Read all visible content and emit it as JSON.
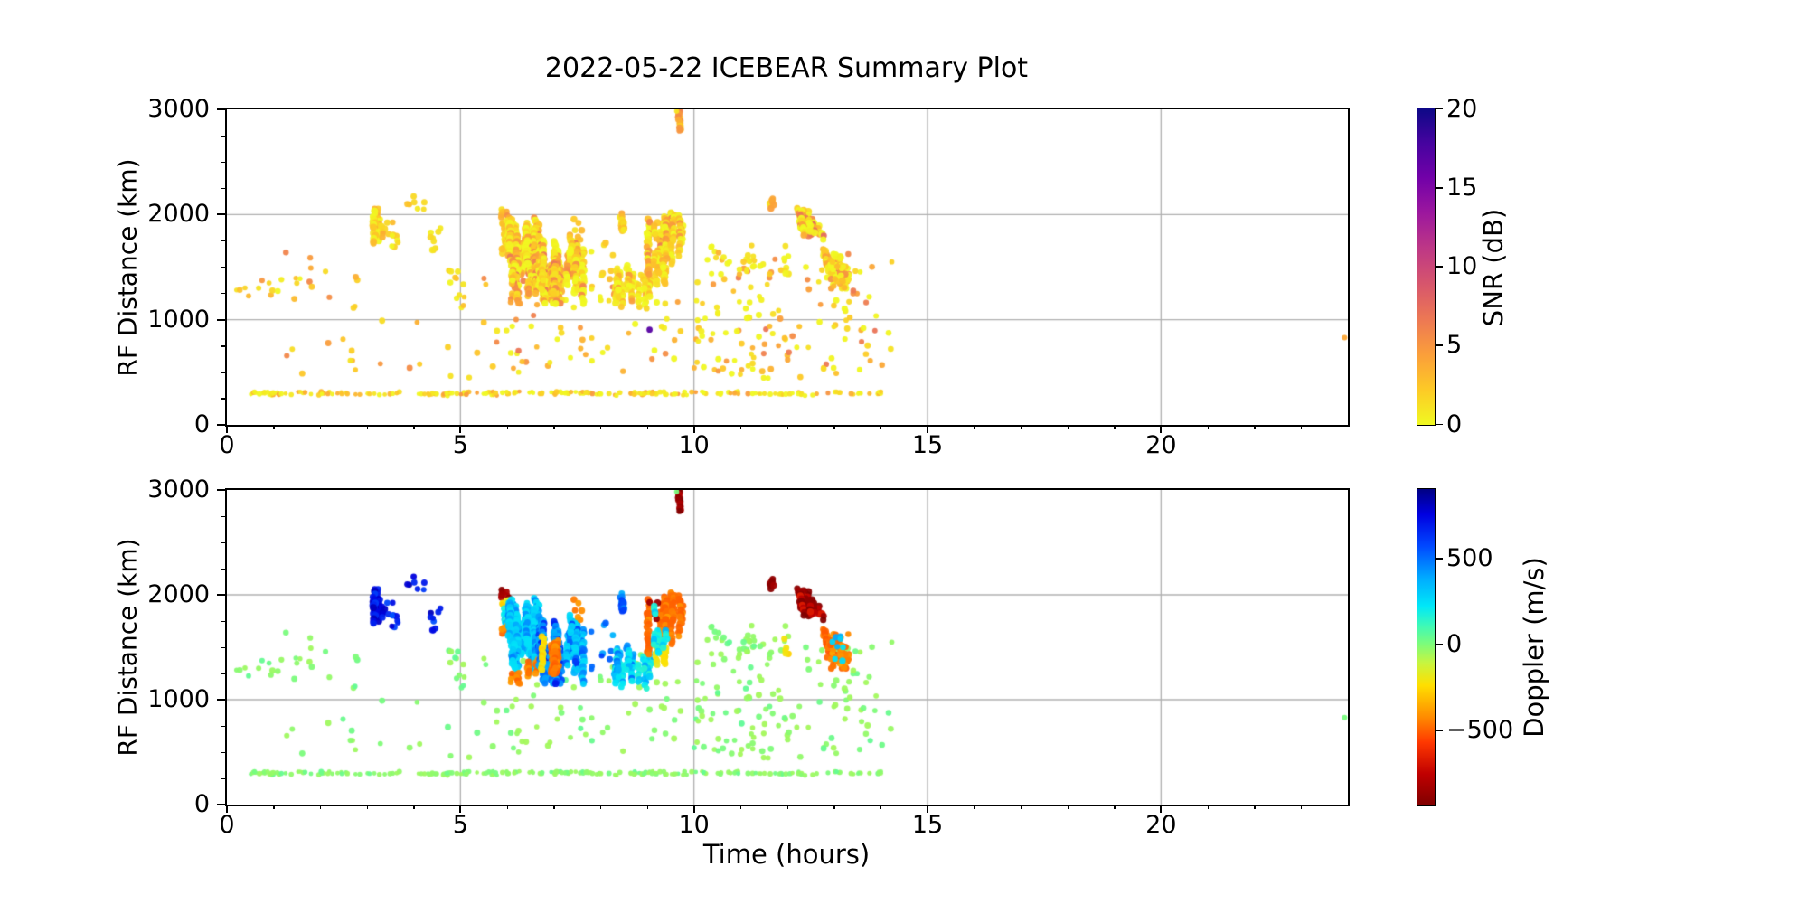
{
  "title": "2022-05-22 ICEBEAR Summary Plot",
  "axes": {
    "x_label": "Time (hours)",
    "y_label": "RF Distance (km)",
    "x_range": [
      0,
      24
    ],
    "y_range": [
      0,
      3000
    ],
    "x_major_ticks": [
      0,
      5,
      10,
      15,
      20
    ],
    "x_minor_step": 1,
    "y_major_ticks": [
      0,
      1000,
      2000,
      3000
    ],
    "y_minor_step": 250,
    "grid_x": [
      5,
      10,
      15,
      20
    ],
    "grid_y": [
      1000,
      2000
    ],
    "grid": true,
    "grid_color": "#b0b0b0",
    "spine_color": "#000000",
    "background": "#ffffff"
  },
  "colorbars": {
    "snr": {
      "label": "SNR (dB)",
      "vmin": 0,
      "vmax": 20,
      "ticks": [
        {
          "v": 0,
          "label": "0"
        },
        {
          "v": 5,
          "label": "5"
        },
        {
          "v": 10,
          "label": "10"
        },
        {
          "v": 15,
          "label": "15"
        },
        {
          "v": 20,
          "label": "20"
        }
      ],
      "stops": [
        [
          0,
          "#f0f921"
        ],
        [
          0.11,
          "#fdca26"
        ],
        [
          0.22,
          "#fb9f3a"
        ],
        [
          0.33,
          "#ed7953"
        ],
        [
          0.44,
          "#d8576b"
        ],
        [
          0.56,
          "#bd3786"
        ],
        [
          0.67,
          "#9c179e"
        ],
        [
          0.78,
          "#7201a8"
        ],
        [
          0.89,
          "#46039f"
        ],
        [
          1,
          "#0d0887"
        ]
      ]
    },
    "doppler": {
      "label": "Doppler (m/s)",
      "vmin": -937,
      "vmax": 905,
      "ticks": [
        {
          "v": 500,
          "label": "500"
        },
        {
          "v": 0,
          "label": "0"
        },
        {
          "v": -500,
          "label": "−500"
        }
      ],
      "stops": [
        [
          0,
          "#7f0000"
        ],
        [
          0.1,
          "#c00000"
        ],
        [
          0.2,
          "#ff3800"
        ],
        [
          0.28,
          "#ff8c00"
        ],
        [
          0.38,
          "#ffdf00"
        ],
        [
          0.45,
          "#c8f53f"
        ],
        [
          0.51,
          "#7dfc7a"
        ],
        [
          0.57,
          "#3cf9b9"
        ],
        [
          0.63,
          "#00e8f8"
        ],
        [
          0.72,
          "#00aaff"
        ],
        [
          0.82,
          "#0048ff"
        ],
        [
          0.92,
          "#0000e0"
        ],
        [
          1,
          "#000083"
        ]
      ]
    }
  },
  "chart_data": {
    "type": "scatter",
    "title": "2022-05-22 ICEBEAR Summary Plot",
    "panels": [
      {
        "id": "snr",
        "color_by": "SNR (dB)",
        "colormap": "plasma_r",
        "x": "Time (hours)",
        "y": "RF Distance (km)"
      },
      {
        "id": "doppler",
        "color_by": "Doppler (m/s)",
        "colormap": "jet_r",
        "x": "Time (hours)",
        "y": "RF Distance (km)"
      }
    ],
    "activity_span_hours": [
      0.2,
      14.3
    ],
    "clusters": [
      {
        "kind": "row",
        "t": [
          0.3,
          14.1
        ],
        "r": [
          283,
          316
        ],
        "n": 150,
        "snr": [
          0,
          5
        ],
        "dop": [
          -45,
          45
        ],
        "bias": 2.2,
        "size": 2.3
      },
      {
        "kind": "scatter",
        "t": [
          0.15,
          3.0
        ],
        "r": [
          1080,
          1660
        ],
        "n": 15,
        "snr": [
          1,
          6
        ],
        "dop": [
          -50,
          50
        ],
        "bias": 1.6,
        "size": 2.8
      },
      {
        "kind": "scatter",
        "t": [
          0.2,
          1.6
        ],
        "r": [
          1270,
          1430
        ],
        "n": 9,
        "snr": [
          0,
          5
        ],
        "dop": [
          -45,
          45
        ],
        "bias": 1.8,
        "size": 2.7
      },
      {
        "kind": "scatter",
        "t": [
          1.0,
          5.6
        ],
        "r": [
          420,
          1140
        ],
        "n": 20,
        "snr": [
          1,
          6
        ],
        "dop": [
          -50,
          50
        ],
        "bias": 1.5,
        "size": 2.8
      },
      {
        "kind": "scatter",
        "t": [
          5.5,
          10.2
        ],
        "r": [
          500,
          1480
        ],
        "n": 72,
        "snr": [
          0,
          7
        ],
        "dop": [
          -55,
          55
        ],
        "bias": 2.2,
        "size": 2.8
      },
      {
        "kind": "scatter",
        "t": [
          10.0,
          14.35
        ],
        "r": [
          430,
          1590
        ],
        "n": 135,
        "snr": [
          0,
          7
        ],
        "dop": [
          -55,
          55
        ],
        "bias": 2.2,
        "size": 2.8
      },
      {
        "kind": "scatter",
        "t": [
          10.2,
          12.05
        ],
        "r": [
          1400,
          1760
        ],
        "n": 22,
        "snr": [
          0,
          4
        ],
        "dop": [
          -50,
          50
        ],
        "bias": 1.8,
        "size": 2.8
      },
      {
        "kind": "streaks",
        "t": [
          3.12,
          3.38
        ],
        "r": [
          1690,
          2080
        ],
        "n": 7,
        "len": [
          130,
          280
        ],
        "snr": [
          0,
          4
        ],
        "dop": [
          820,
          580
        ],
        "bias": 1.6,
        "size": 3.3
      },
      {
        "kind": "scatter",
        "t": [
          3.38,
          3.78
        ],
        "r": [
          1620,
          1930
        ],
        "n": 10,
        "snr": [
          0,
          3
        ],
        "dop": [
          800,
          540
        ],
        "size": 3.0
      },
      {
        "kind": "scatter",
        "t": [
          3.85,
          4.02
        ],
        "r": [
          2090,
          2180
        ],
        "n": 4,
        "snr": [
          0,
          3
        ],
        "dop": [
          850,
          600
        ],
        "size": 3.0
      },
      {
        "kind": "scatter",
        "t": [
          4.3,
          4.58
        ],
        "r": [
          1650,
          1900
        ],
        "n": 9,
        "snr": [
          0,
          3
        ],
        "dop": [
          820,
          550
        ],
        "size": 3.0
      },
      {
        "kind": "scatter",
        "t": [
          4.08,
          4.28
        ],
        "r": [
          2030,
          2140
        ],
        "n": 3,
        "snr": [
          0,
          2
        ],
        "dop": [
          860,
          600
        ],
        "size": 3.0
      },
      {
        "kind": "scatter",
        "t": [
          4.75,
          5.08
        ],
        "r": [
          1330,
          1480
        ],
        "n": 7,
        "snr": [
          0,
          3
        ],
        "dop": [
          -60,
          60
        ],
        "size": 2.8
      },
      {
        "kind": "scatter",
        "t": [
          4.88,
          5.1
        ],
        "r": [
          1080,
          1240
        ],
        "n": 5,
        "snr": [
          0,
          3
        ],
        "dop": [
          -60,
          60
        ],
        "size": 2.8
      },
      {
        "kind": "streaks",
        "t": [
          5.88,
          6.04
        ],
        "r": [
          1930,
          2075
        ],
        "n": 2,
        "len": [
          70,
          110
        ],
        "snr": [
          1,
          6
        ],
        "dop": [
          -937,
          -800
        ],
        "size": 3.3
      },
      {
        "kind": "scatter",
        "t": [
          5.88,
          6.05
        ],
        "r": [
          1835,
          1950
        ],
        "n": 6,
        "snr": [
          0,
          3
        ],
        "dop": [
          -280,
          -170
        ],
        "size": 3.0
      },
      {
        "kind": "streaks",
        "t": [
          5.9,
          6.02
        ],
        "r": [
          1690,
          1870
        ],
        "n": 2,
        "len": [
          110,
          160
        ],
        "snr": [
          0,
          3
        ],
        "dop": [
          140,
          360
        ],
        "size": 3.2
      },
      {
        "kind": "scatter",
        "t": [
          5.88,
          6.06
        ],
        "r": [
          1610,
          1725
        ],
        "n": 9,
        "snr": [
          1,
          5
        ],
        "dop": [
          -500,
          -400
        ],
        "bias": 1.4,
        "size": 3.2
      },
      {
        "kind": "streaks",
        "t": [
          6.02,
          6.68
        ],
        "r": [
          1200,
          1990
        ],
        "n": 30,
        "len": [
          160,
          430
        ],
        "snr": [
          0,
          7
        ],
        "dop": [
          240,
          500
        ],
        "bias": 2.4,
        "size": 3.4
      },
      {
        "kind": "streaks",
        "t": [
          6.04,
          6.25
        ],
        "r": [
          1050,
          1270
        ],
        "n": 3,
        "len": [
          90,
          150
        ],
        "snr": [
          1,
          6
        ],
        "dop": [
          -500,
          -380
        ],
        "size": 3.2
      },
      {
        "kind": "streaks",
        "t": [
          6.42,
          6.64
        ],
        "r": [
          1190,
          1470
        ],
        "n": 3,
        "len": [
          120,
          210
        ],
        "snr": [
          1,
          6
        ],
        "dop": [
          -500,
          -390
        ],
        "size": 3.2
      },
      {
        "kind": "streaks",
        "t": [
          6.66,
          7.14
        ],
        "r": [
          1130,
          1830
        ],
        "n": 16,
        "len": [
          160,
          400
        ],
        "snr": [
          0,
          7
        ],
        "dop": [
          370,
          700
        ],
        "bias": 2.4,
        "size": 3.4
      },
      {
        "kind": "streaks",
        "t": [
          6.73,
          6.86
        ],
        "r": [
          1250,
          1710
        ],
        "n": 2,
        "len": [
          260,
          360
        ],
        "snr": [
          0,
          3
        ],
        "dop": [
          -280,
          -180
        ],
        "size": 3.2
      },
      {
        "kind": "streaks",
        "t": [
          6.94,
          7.12
        ],
        "r": [
          1230,
          1770
        ],
        "n": 4,
        "len": [
          220,
          420
        ],
        "snr": [
          1,
          7
        ],
        "dop": [
          -500,
          -390
        ],
        "bias": 1.6,
        "size": 3.3
      },
      {
        "kind": "streaks",
        "t": [
          7.26,
          7.68
        ],
        "r": [
          1140,
          1810
        ],
        "n": 13,
        "len": [
          160,
          390
        ],
        "snr": [
          0,
          7
        ],
        "dop": [
          260,
          660
        ],
        "bias": 2.4,
        "size": 3.4
      },
      {
        "kind": "scatter",
        "t": [
          7.4,
          7.6
        ],
        "r": [
          1700,
          1970
        ],
        "n": 6,
        "snr": [
          1,
          4
        ],
        "dop": [
          -490,
          -390
        ],
        "size": 3.1
      },
      {
        "kind": "scatter",
        "t": [
          7.7,
          8.28
        ],
        "r": [
          1290,
          1760
        ],
        "n": 10,
        "snr": [
          0,
          3
        ],
        "dop": [
          340,
          620
        ],
        "size": 3.0
      },
      {
        "kind": "streaks",
        "t": [
          8.3,
          8.74
        ],
        "r": [
          1110,
          1530
        ],
        "n": 8,
        "len": [
          110,
          300
        ],
        "snr": [
          0,
          5
        ],
        "dop": [
          190,
          500
        ],
        "bias": 2,
        "size": 3.3
      },
      {
        "kind": "streaks",
        "t": [
          8.38,
          8.52
        ],
        "r": [
          1820,
          2070
        ],
        "n": 2,
        "len": [
          140,
          210
        ],
        "snr": [
          0,
          4
        ],
        "dop": [
          380,
          620
        ],
        "size": 3.3
      },
      {
        "kind": "streaks",
        "t": [
          8.76,
          9.12
        ],
        "r": [
          1070,
          1500
        ],
        "n": 6,
        "len": [
          90,
          260
        ],
        "snr": [
          0,
          4
        ],
        "dop": [
          150,
          420
        ],
        "bias": 2,
        "size": 3.2
      },
      {
        "kind": "streaks",
        "t": [
          9.0,
          9.56
        ],
        "r": [
          1400,
          2050
        ],
        "n": 11,
        "len": [
          160,
          430
        ],
        "snr": [
          0,
          7
        ],
        "dop": [
          -500,
          -380
        ],
        "bias": 1.9,
        "size": 3.4
      },
      {
        "kind": "streaks",
        "t": [
          9.15,
          9.5
        ],
        "r": [
          1150,
          1600
        ],
        "n": 4,
        "len": [
          120,
          260
        ],
        "snr": [
          0,
          3
        ],
        "dop": [
          -260,
          -170
        ],
        "size": 3.2
      },
      {
        "kind": "scatter",
        "t": [
          9.04,
          9.22
        ],
        "r": [
          1600,
          1990
        ],
        "n": 4,
        "snr": [
          2,
          6
        ],
        "dop": [
          -870,
          -750
        ],
        "size": 3.2
      },
      {
        "kind": "streaks",
        "t": [
          9.0,
          9.42
        ],
        "r": [
          1150,
          1900
        ],
        "n": 6,
        "len": [
          90,
          210
        ],
        "snr": [
          0,
          4
        ],
        "dop": [
          150,
          410
        ],
        "bias": 2,
        "size": 3.2
      },
      {
        "kind": "streaks",
        "t": [
          9.54,
          9.76
        ],
        "r": [
          1590,
          2070
        ],
        "n": 4,
        "len": [
          160,
          360
        ],
        "snr": [
          0,
          5
        ],
        "dop": [
          -500,
          -390
        ],
        "bias": 1.8,
        "size": 3.3
      },
      {
        "kind": "streaks",
        "t": [
          9.58,
          9.71
        ],
        "r": [
          2780,
          3000
        ],
        "n": 2,
        "len": [
          160,
          220
        ],
        "snr": [
          1,
          7
        ],
        "dop": [
          -937,
          -790
        ],
        "bias": 1.2,
        "size": 3.3
      },
      {
        "kind": "scatter",
        "t": [
          10.95,
          11.32
        ],
        "r": [
          1420,
          1570
        ],
        "n": 6,
        "snr": [
          0,
          3
        ],
        "dop": [
          -45,
          45
        ],
        "size": 2.8
      },
      {
        "kind": "streaks",
        "t": [
          11.6,
          11.8
        ],
        "r": [
          2020,
          2165
        ],
        "n": 2,
        "len": [
          70,
          115
        ],
        "snr": [
          1,
          5
        ],
        "dop": [
          -937,
          -820
        ],
        "size": 3.4
      },
      {
        "kind": "diag",
        "t": [
          12.05,
          12.78
        ],
        "r": [
          2165,
          1790
        ],
        "n": 14,
        "len": [
          130,
          280
        ],
        "snr": [
          0,
          8
        ],
        "dop": [
          -937,
          -650
        ],
        "bias": 1.9,
        "size": 3.4
      },
      {
        "kind": "diag",
        "t": [
          12.6,
          13.05
        ],
        "r": [
          1790,
          1430
        ],
        "n": 5,
        "len": [
          130,
          230
        ],
        "snr": [
          0,
          5
        ],
        "dop": [
          -520,
          -430
        ],
        "bias": 1.6,
        "size": 3.3
      },
      {
        "kind": "scatter",
        "t": [
          12.85,
          13.32
        ],
        "r": [
          1290,
          1640
        ],
        "n": 60,
        "snr": [
          0,
          6
        ],
        "dop": [
          -500,
          -350
        ],
        "bias": 2,
        "size": 3.1
      },
      {
        "kind": "scatter",
        "t": [
          12.9,
          13.28
        ],
        "r": [
          1350,
          1610
        ],
        "n": 8,
        "snr": [
          0,
          3
        ],
        "dop": [
          200,
          460
        ],
        "size": 3.0
      },
      {
        "kind": "scatter",
        "t": [
          11.86,
          12.06
        ],
        "r": [
          1380,
          1620
        ],
        "n": 5,
        "snr": [
          0,
          3
        ],
        "dop": [
          -270,
          -180
        ],
        "size": 3.0
      }
    ],
    "special_points": [
      {
        "t": 9.05,
        "r": 905,
        "snr": 17,
        "dop": -20,
        "size": 3.4
      },
      {
        "t": 9.63,
        "r": 2982,
        "snr": 1,
        "dop": 8,
        "size": 2.8
      },
      {
        "t": 23.93,
        "r": 830,
        "snr": 4,
        "dop": 10,
        "size": 3.0
      }
    ]
  }
}
